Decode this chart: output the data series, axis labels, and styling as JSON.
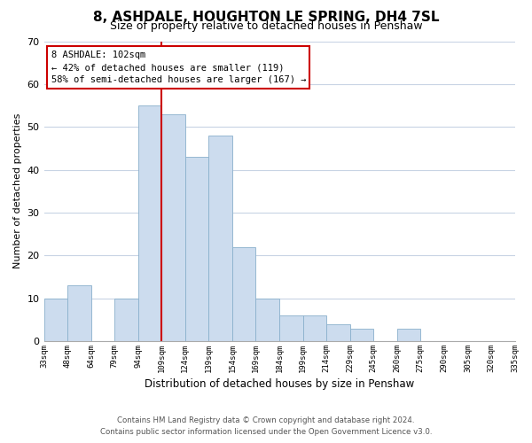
{
  "title": "8, ASHDALE, HOUGHTON LE SPRING, DH4 7SL",
  "subtitle": "Size of property relative to detached houses in Penshaw",
  "xlabel": "Distribution of detached houses by size in Penshaw",
  "ylabel": "Number of detached properties",
  "bar_color": "#ccdcee",
  "bar_edge_color": "#8ab0cc",
  "vline_color": "#cc0000",
  "annotation_title": "8 ASHDALE: 102sqm",
  "annotation_line1": "← 42% of detached houses are smaller (119)",
  "annotation_line2": "58% of semi-detached houses are larger (167) →",
  "bins": [
    "33sqm",
    "48sqm",
    "64sqm",
    "79sqm",
    "94sqm",
    "109sqm",
    "124sqm",
    "139sqm",
    "154sqm",
    "169sqm",
    "184sqm",
    "199sqm",
    "214sqm",
    "229sqm",
    "245sqm",
    "260sqm",
    "275sqm",
    "290sqm",
    "305sqm",
    "320sqm",
    "335sqm"
  ],
  "values": [
    10,
    13,
    0,
    10,
    55,
    53,
    43,
    48,
    22,
    10,
    6,
    6,
    4,
    3,
    0,
    3,
    0,
    0,
    0,
    0
  ],
  "ylim": [
    0,
    70
  ],
  "yticks": [
    0,
    10,
    20,
    30,
    40,
    50,
    60,
    70
  ],
  "background_color": "#ffffff",
  "grid_color": "#c8d4e4",
  "footer_line1": "Contains HM Land Registry data © Crown copyright and database right 2024.",
  "footer_line2": "Contains public sector information licensed under the Open Government Licence v3.0.",
  "vline_bin_index": 5
}
